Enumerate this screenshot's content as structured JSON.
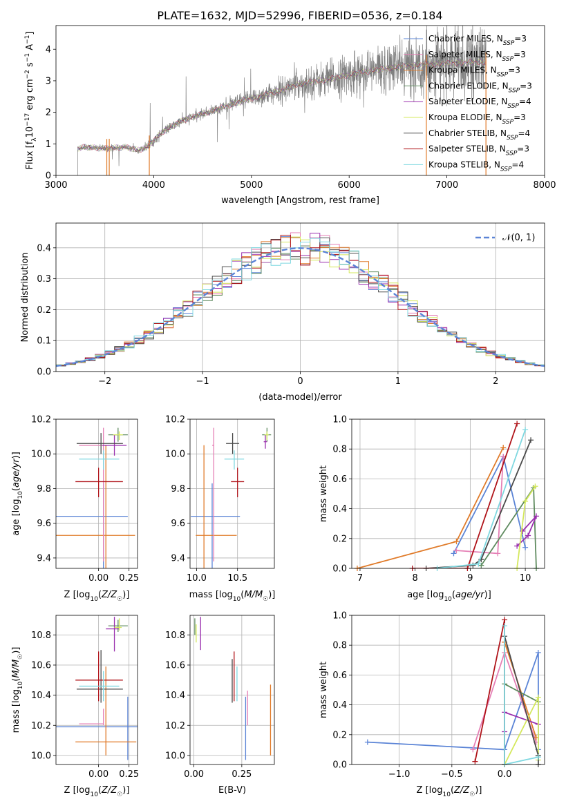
{
  "title": "PLATE=1632, MJD=52996, FIBERID=0536, z=0.184",
  "legend_models": [
    {
      "name": "Chabrier MILES",
      "sub": "SSP",
      "n": "3",
      "color": "#5b84d6"
    },
    {
      "name": "Salpeter MILES",
      "sub": "SSP",
      "n": "3",
      "color": "#e57fb5"
    },
    {
      "name": "Kroupa MILES",
      "sub": "SSP",
      "n": "3",
      "color": "#e07b2a"
    },
    {
      "name": "Chabrier ELODIE",
      "sub": "SSP",
      "n": "3",
      "color": "#5f8b5f"
    },
    {
      "name": "Salpeter ELODIE",
      "sub": "SSP",
      "n": "4",
      "color": "#9a2fae"
    },
    {
      "name": "Kroupa ELODIE",
      "sub": "SSP",
      "n": "3",
      "color": "#d4e85c"
    },
    {
      "name": "Chabrier STELIB",
      "sub": "SSP",
      "n": "4",
      "color": "#4a4a4a"
    },
    {
      "name": "Salpeter STELIB",
      "sub": "SSP",
      "n": "3",
      "color": "#b0141a"
    },
    {
      "name": "Kroupa STELIB",
      "sub": "SSP",
      "n": "4",
      "color": "#7fd8e0"
    }
  ],
  "chart_data": [
    {
      "id": "spectrum",
      "type": "line",
      "xlabel": "wavelength [Angstrom, rest frame]",
      "ylabel": "Flux [f_λ 10^-17 erg cm^-2 s^-1 A^-1]",
      "xlim": [
        3000,
        8000
      ],
      "ylim": [
        0,
        4.75
      ],
      "xticks": [
        3000,
        4000,
        5000,
        6000,
        7000,
        8000
      ],
      "yticks": [
        0,
        1,
        2,
        3,
        4
      ],
      "data_color": "#808080",
      "spectrum_anchors": {
        "x": [
          3220,
          3300,
          3500,
          3700,
          3850,
          3950,
          4100,
          4300,
          4600,
          4900,
          5200,
          5500,
          5800,
          6100,
          6400,
          6700,
          7000,
          7400
        ],
        "y": [
          0.85,
          0.9,
          0.85,
          0.9,
          0.8,
          0.95,
          1.4,
          1.75,
          2.05,
          2.35,
          2.6,
          2.9,
          3.05,
          3.25,
          3.4,
          3.5,
          3.55,
          3.6
        ]
      }
    },
    {
      "id": "residual_hist",
      "type": "line",
      "xlabel": "(data-model)/error",
      "ylabel": "Normed distribution",
      "xlim": [
        -2.5,
        2.5
      ],
      "ylim": [
        0,
        0.48
      ],
      "xticks": [
        -2,
        -1,
        0,
        1,
        2
      ],
      "yticks": [
        0.0,
        0.1,
        0.2,
        0.3,
        0.4
      ],
      "normal_label": "𝒩(0, 1)",
      "normal_color": "#5b84d6",
      "bin_width": 0.1
    },
    {
      "id": "Z_vs_age",
      "type": "scatter",
      "xlabel": "Z [log10(Z/Z☉)]",
      "ylabel": "age [log10(age/yr)]",
      "xlim": [
        -0.35,
        0.32
      ],
      "ylim": [
        9.34,
        10.2
      ],
      "xticks": [
        0.0,
        0.25
      ],
      "yticks": [
        9.4,
        9.6,
        9.8,
        10.0,
        10.2
      ],
      "points": [
        {
          "x": 0.04,
          "y": 9.64,
          "xerr": [
            0.42,
            0.2
          ],
          "yerr": [
            0.46,
            0.19
          ],
          "c": 0
        },
        {
          "x": 0.06,
          "y": 9.53,
          "xerr": [
            0.46,
            0.24
          ],
          "yerr": [
            0.19,
            0.52
          ],
          "c": 2
        },
        {
          "x": 0.04,
          "y": 10.05,
          "xerr": [
            0.2,
            0.0
          ],
          "yerr": [
            0.67,
            0.1
          ],
          "c": 1
        },
        {
          "x": 0.16,
          "y": 10.11,
          "xerr": [
            0.08,
            0.08
          ],
          "yerr": [
            0.04,
            0.04
          ],
          "c": 3
        },
        {
          "x": 0.13,
          "y": 10.05,
          "xerr": [
            0.1,
            0.1
          ],
          "yerr": [
            0.06,
            0.06
          ],
          "c": 4
        },
        {
          "x": 0.17,
          "y": 10.11,
          "xerr": [
            0.05,
            0.03
          ],
          "yerr": [
            0.03,
            0.02
          ],
          "c": 5
        },
        {
          "x": 0.02,
          "y": 10.06,
          "xerr": [
            0.2,
            0.18
          ],
          "yerr": [
            0.06,
            0.06
          ],
          "c": 6
        },
        {
          "x": 0.0,
          "y": 9.84,
          "xerr": [
            0.19,
            0.2
          ],
          "yerr": [
            0.09,
            0.08
          ],
          "c": 7
        },
        {
          "x": 0.04,
          "y": 9.97,
          "xerr": [
            0.2,
            0.13
          ],
          "yerr": [
            0.06,
            0.05
          ],
          "c": 8
        }
      ]
    },
    {
      "id": "mass_vs_age",
      "type": "scatter",
      "xlabel": "mass [log10(M/M☉)]",
      "ylabel": "",
      "xlim": [
        9.92,
        10.95
      ],
      "ylim": [
        9.34,
        10.2
      ],
      "xticks": [
        10.0,
        10.5
      ],
      "yticks": [
        9.4,
        9.6,
        9.8,
        10.0,
        10.2
      ],
      "points": [
        {
          "x": 10.19,
          "y": 9.64,
          "xerr": [
            0.26,
            0.34
          ],
          "yerr": [
            0.46,
            0.19
          ],
          "c": 0
        },
        {
          "x": 10.09,
          "y": 9.53,
          "xerr": [
            0.1,
            0.4
          ],
          "yerr": [
            0.19,
            0.52
          ],
          "c": 2
        },
        {
          "x": 10.21,
          "y": 10.05,
          "xerr": [
            0.02,
            0.0
          ],
          "yerr": [
            0.67,
            0.1
          ],
          "c": 1
        },
        {
          "x": 10.86,
          "y": 10.11,
          "xerr": [
            0.06,
            0.05
          ],
          "yerr": [
            0.04,
            0.04
          ],
          "c": 3
        },
        {
          "x": 10.84,
          "y": 10.07,
          "xerr": [
            0.02,
            0.02
          ],
          "yerr": [
            0.04,
            0.04
          ],
          "c": 4
        },
        {
          "x": 10.86,
          "y": 10.11,
          "xerr": [
            0.03,
            0.02
          ],
          "yerr": [
            0.03,
            0.02
          ],
          "c": 5
        },
        {
          "x": 10.44,
          "y": 10.06,
          "xerr": [
            0.08,
            0.08
          ],
          "yerr": [
            0.06,
            0.06
          ],
          "c": 6
        },
        {
          "x": 10.5,
          "y": 9.84,
          "xerr": [
            0.08,
            0.08
          ],
          "yerr": [
            0.09,
            0.08
          ],
          "c": 7
        },
        {
          "x": 10.46,
          "y": 9.97,
          "xerr": [
            0.12,
            0.12
          ],
          "yerr": [
            0.06,
            0.05
          ],
          "c": 8
        }
      ]
    },
    {
      "id": "age_vs_massweight",
      "type": "line",
      "xlabel": "age [log10(age/yr)]",
      "ylabel": "mass weight",
      "xlim": [
        6.85,
        10.35
      ],
      "ylim": [
        0,
        1.0
      ],
      "xticks": [
        7,
        8,
        9,
        10
      ],
      "yticks": [
        0.0,
        0.2,
        0.4,
        0.6,
        0.8,
        1.0
      ],
      "series": [
        {
          "c": 0,
          "x": [
            8.7,
            9.6,
            10.0
          ],
          "y": [
            0.1,
            0.75,
            0.14
          ]
        },
        {
          "c": 1,
          "x": [
            8.75,
            9.5,
            9.6
          ],
          "y": [
            0.12,
            0.1,
            0.75
          ]
        },
        {
          "c": 2,
          "x": [
            6.95,
            8.75,
            9.6
          ],
          "y": [
            0.0,
            0.18,
            0.81
          ]
        },
        {
          "c": 3,
          "x": [
            9.2,
            10.15,
            10.2
          ],
          "y": [
            0.02,
            0.54,
            0.0
          ]
        },
        {
          "c": 4,
          "x": [
            9.85,
            10.05,
            10.2,
            9.95
          ],
          "y": [
            0.15,
            0.22,
            0.35,
            0.25
          ]
        },
        {
          "c": 5,
          "x": [
            9.85,
            10.0,
            10.18
          ],
          "y": [
            0.0,
            0.45,
            0.55
          ]
        },
        {
          "c": 6,
          "x": [
            8.2,
            9.05,
            9.2,
            10.1
          ],
          "y": [
            0.0,
            0.02,
            0.06,
            0.86
          ]
        },
        {
          "c": 7,
          "x": [
            7.95,
            8.95,
            9.85
          ],
          "y": [
            0.0,
            0.0,
            0.97
          ]
        },
        {
          "c": 8,
          "x": [
            8.4,
            9.15,
            10.0
          ],
          "y": [
            0.0,
            0.03,
            0.93
          ]
        }
      ]
    },
    {
      "id": "Z_vs_mass",
      "type": "scatter",
      "xlabel": "Z [log10(Z/Z☉)]",
      "ylabel": "mass [log10(M/M☉)]",
      "xlim": [
        -0.35,
        0.32
      ],
      "ylim": [
        9.94,
        10.93
      ],
      "xticks": [
        0.0,
        0.25
      ],
      "yticks": [
        10.0,
        10.2,
        10.4,
        10.6,
        10.8
      ],
      "points": [
        {
          "x": 0.24,
          "y": 10.19,
          "xerr": [
            0.6,
            0.08
          ],
          "yerr": [
            0.22,
            0.2
          ],
          "c": 0
        },
        {
          "x": 0.06,
          "y": 10.09,
          "xerr": [
            0.25,
            0.25
          ],
          "yerr": [
            0.09,
            0.5
          ],
          "c": 2
        },
        {
          "x": 0.04,
          "y": 10.21,
          "xerr": [
            0.2,
            0.0
          ],
          "yerr": [
            0.01,
            0.1
          ],
          "c": 1
        },
        {
          "x": 0.16,
          "y": 10.86,
          "xerr": [
            0.08,
            0.08
          ],
          "yerr": [
            0.04,
            0.04
          ],
          "c": 3
        },
        {
          "x": 0.13,
          "y": 10.84,
          "xerr": [
            0.07,
            0.04
          ],
          "yerr": [
            0.15,
            0.08
          ],
          "c": 4
        },
        {
          "x": 0.17,
          "y": 10.85,
          "xerr": [
            0.04,
            0.02
          ],
          "yerr": [
            0.02,
            0.06
          ],
          "c": 5
        },
        {
          "x": 0.02,
          "y": 10.44,
          "xerr": [
            0.2,
            0.18
          ],
          "yerr": [
            0.09,
            0.26
          ],
          "c": 6
        },
        {
          "x": 0.0,
          "y": 10.5,
          "xerr": [
            0.19,
            0.2
          ],
          "yerr": [
            0.14,
            0.19
          ],
          "c": 7
        },
        {
          "x": 0.04,
          "y": 10.46,
          "xerr": [
            0.2,
            0.13
          ],
          "yerr": [
            0.1,
            0.1
          ],
          "c": 8
        }
      ]
    },
    {
      "id": "ebv_vs_mass",
      "type": "scatter",
      "xlabel": "E(B-V)",
      "ylabel": "",
      "xlim": [
        -0.02,
        0.42
      ],
      "ylim": [
        9.94,
        10.93
      ],
      "xticks": [
        0.0,
        0.25
      ],
      "yticks": [
        10.0,
        10.2,
        10.4,
        10.6,
        10.8
      ],
      "points": [
        {
          "x": 0.27,
          "y": 10.19,
          "xerr": [
            0,
            0
          ],
          "yerr": [
            0.22,
            0.2
          ],
          "c": 0
        },
        {
          "x": 0.4,
          "y": 10.09,
          "xerr": [
            0,
            0
          ],
          "yerr": [
            0.09,
            0.38
          ],
          "c": 2
        },
        {
          "x": 0.28,
          "y": 10.21,
          "xerr": [
            0,
            0
          ],
          "yerr": [
            0.01,
            0.22
          ],
          "c": 1
        },
        {
          "x": 0.005,
          "y": 10.86,
          "xerr": [
            0,
            0
          ],
          "yerr": [
            0.06,
            0.05
          ],
          "c": 3
        },
        {
          "x": 0.035,
          "y": 10.84,
          "xerr": [
            0,
            0
          ],
          "yerr": [
            0.14,
            0.08
          ],
          "c": 4
        },
        {
          "x": 0.012,
          "y": 10.85,
          "xerr": [
            0,
            0
          ],
          "yerr": [
            0.1,
            0.02
          ],
          "c": 5
        },
        {
          "x": 0.2,
          "y": 10.44,
          "xerr": [
            0,
            0
          ],
          "yerr": [
            0.09,
            0.2
          ],
          "c": 6
        },
        {
          "x": 0.21,
          "y": 10.5,
          "xerr": [
            0,
            0
          ],
          "yerr": [
            0.14,
            0.19
          ],
          "c": 7
        },
        {
          "x": 0.225,
          "y": 10.46,
          "xerr": [
            0,
            0
          ],
          "yerr": [
            0.1,
            0.13
          ],
          "c": 8
        }
      ]
    },
    {
      "id": "Z_vs_massweight",
      "type": "line",
      "xlabel": "Z [log10(Z/Z☉)]",
      "ylabel": "mass weight",
      "xlim": [
        -1.45,
        0.38
      ],
      "ylim": [
        0,
        1.0
      ],
      "xticks": [
        -1.0,
        -0.5,
        0.0
      ],
      "yticks": [
        0.0,
        0.2,
        0.4,
        0.6,
        0.8,
        1.0
      ],
      "series": [
        {
          "c": 0,
          "x": [
            -1.3,
            0.0,
            0.32,
            0.32
          ],
          "y": [
            0.15,
            0.1,
            0.75,
            0.1
          ]
        },
        {
          "c": 1,
          "x": [
            -0.3,
            0.0,
            0.3
          ],
          "y": [
            0.1,
            0.75,
            0.15
          ]
        },
        {
          "c": 2,
          "x": [
            0.0,
            0.0,
            0.3
          ],
          "y": [
            0.0,
            0.82,
            0.18
          ]
        },
        {
          "c": 3,
          "x": [
            0.0,
            0.0,
            0.32
          ],
          "y": [
            0.0,
            0.54,
            0.42
          ]
        },
        {
          "c": 4,
          "x": [
            0.0,
            0.0,
            0.32
          ],
          "y": [
            0.22,
            0.35,
            0.27
          ]
        },
        {
          "c": 5,
          "x": [
            0.0,
            0.32,
            0.32
          ],
          "y": [
            0.0,
            0.45,
            0.03
          ]
        },
        {
          "c": 6,
          "x": [
            0.0,
            0.32,
            0.32
          ],
          "y": [
            0.86,
            0.06,
            0.0
          ]
        },
        {
          "c": 7,
          "x": [
            -0.28,
            0.0,
            0.0
          ],
          "y": [
            0.02,
            0.97,
            0.0
          ]
        },
        {
          "c": 8,
          "x": [
            0.0,
            0.0,
            0.32
          ],
          "y": [
            0.93,
            0.0,
            0.05
          ]
        }
      ]
    }
  ]
}
